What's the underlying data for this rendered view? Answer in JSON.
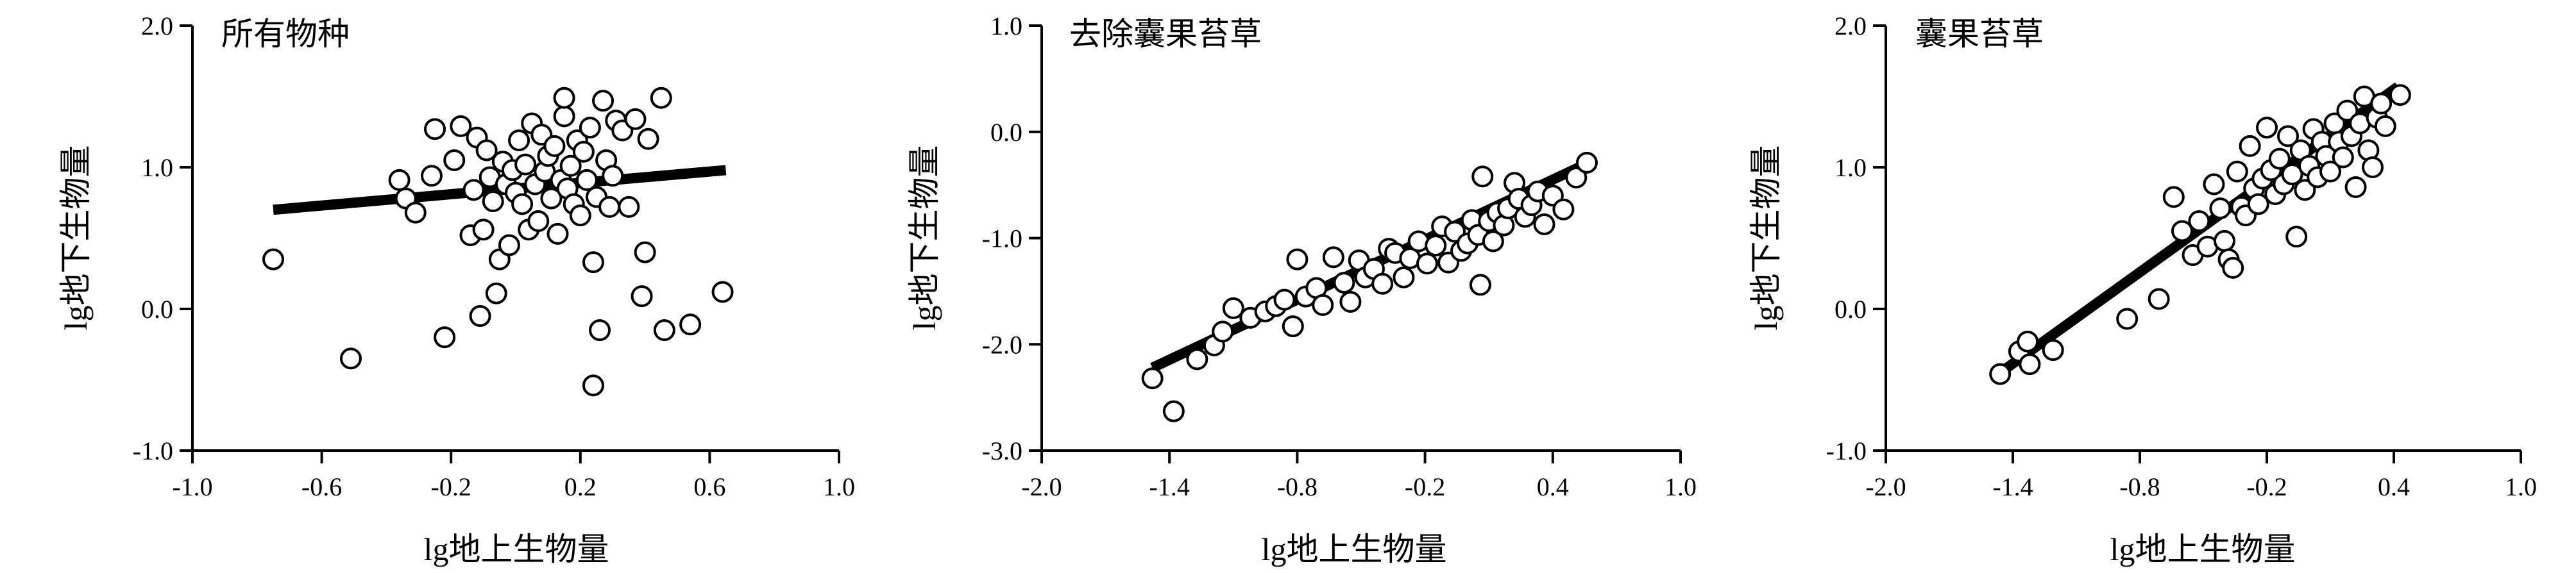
{
  "chart_data": [
    {
      "type": "scatter",
      "title": "所有物种",
      "xlabel": "lg地上生物量",
      "ylabel": "lg地下生物量",
      "xlim": [
        -1.0,
        1.0
      ],
      "ylim": [
        -1.0,
        2.0
      ],
      "xticks": [
        "-1.0",
        "-0.6",
        "-0.2",
        "0.2",
        "0.6",
        "1.0"
      ],
      "yticks": [
        "2.0",
        "1.0",
        "0.0",
        "-1.0"
      ],
      "grid": false,
      "fit_line": {
        "x": [
          -0.75,
          0.65
        ],
        "y": [
          0.7,
          0.98
        ]
      },
      "points": [
        [
          -0.75,
          0.35
        ],
        [
          -0.51,
          -0.35
        ],
        [
          -0.36,
          0.91
        ],
        [
          -0.34,
          0.78
        ],
        [
          -0.31,
          0.68
        ],
        [
          -0.26,
          0.94
        ],
        [
          -0.25,
          1.27
        ],
        [
          -0.22,
          -0.2
        ],
        [
          -0.19,
          1.05
        ],
        [
          -0.17,
          1.29
        ],
        [
          -0.14,
          0.52
        ],
        [
          -0.13,
          0.84
        ],
        [
          -0.12,
          1.21
        ],
        [
          -0.11,
          -0.05
        ],
        [
          -0.1,
          0.56
        ],
        [
          -0.09,
          1.12
        ],
        [
          -0.08,
          0.93
        ],
        [
          -0.07,
          0.76
        ],
        [
          -0.06,
          0.11
        ],
        [
          -0.05,
          0.35
        ],
        [
          -0.04,
          1.04
        ],
        [
          -0.03,
          0.88
        ],
        [
          -0.02,
          0.45
        ],
        [
          -0.01,
          0.98
        ],
        [
          0.0,
          0.82
        ],
        [
          0.01,
          1.19
        ],
        [
          0.02,
          0.74
        ],
        [
          0.03,
          1.02
        ],
        [
          0.04,
          0.56
        ],
        [
          0.05,
          1.31
        ],
        [
          0.06,
          0.88
        ],
        [
          0.07,
          0.62
        ],
        [
          0.08,
          1.23
        ],
        [
          0.09,
          0.97
        ],
        [
          0.1,
          1.08
        ],
        [
          0.11,
          0.78
        ],
        [
          0.12,
          1.15
        ],
        [
          0.13,
          0.53
        ],
        [
          0.14,
          0.91
        ],
        [
          0.15,
          1.36
        ],
        [
          0.15,
          1.49
        ],
        [
          0.16,
          0.85
        ],
        [
          0.17,
          1.01
        ],
        [
          0.18,
          0.74
        ],
        [
          0.19,
          1.19
        ],
        [
          0.2,
          0.66
        ],
        [
          0.21,
          1.11
        ],
        [
          0.22,
          0.91
        ],
        [
          0.23,
          1.28
        ],
        [
          0.24,
          0.33
        ],
        [
          0.24,
          -0.54
        ],
        [
          0.25,
          0.79
        ],
        [
          0.26,
          -0.15
        ],
        [
          0.27,
          1.47
        ],
        [
          0.28,
          1.05
        ],
        [
          0.29,
          0.72
        ],
        [
          0.3,
          0.94
        ],
        [
          0.31,
          1.33
        ],
        [
          0.33,
          1.26
        ],
        [
          0.35,
          0.72
        ],
        [
          0.37,
          1.34
        ],
        [
          0.39,
          0.09
        ],
        [
          0.4,
          0.4
        ],
        [
          0.41,
          1.2
        ],
        [
          0.45,
          1.49
        ],
        [
          0.46,
          -0.15
        ],
        [
          0.54,
          -0.11
        ],
        [
          0.64,
          0.12
        ]
      ]
    },
    {
      "type": "scatter",
      "title": "去除囊果苔草",
      "xlabel": "lg地上生物量",
      "ylabel": "lg地下生物量",
      "xlim": [
        -2.0,
        1.0
      ],
      "ylim": [
        -3.0,
        1.0
      ],
      "xticks": [
        "-2.0",
        "-1.4",
        "-0.8",
        "-0.2",
        "0.4",
        "1.0"
      ],
      "yticks": [
        "1.0",
        "0.0",
        "-1.0",
        "-2.0",
        "-3.0"
      ],
      "grid": false,
      "fit_line": {
        "x": [
          -1.48,
          0.58
        ],
        "y": [
          -2.22,
          -0.28
        ]
      },
      "points": [
        [
          -1.48,
          -2.32
        ],
        [
          -1.38,
          -2.63
        ],
        [
          -1.27,
          -2.14
        ],
        [
          -1.19,
          -2.01
        ],
        [
          -1.15,
          -1.88
        ],
        [
          -1.1,
          -1.66
        ],
        [
          -1.02,
          -1.75
        ],
        [
          -0.95,
          -1.69
        ],
        [
          -0.9,
          -1.64
        ],
        [
          -0.86,
          -1.58
        ],
        [
          -0.82,
          -1.83
        ],
        [
          -0.8,
          -1.2
        ],
        [
          -0.76,
          -1.55
        ],
        [
          -0.71,
          -1.47
        ],
        [
          -0.68,
          -1.63
        ],
        [
          -0.63,
          -1.18
        ],
        [
          -0.58,
          -1.42
        ],
        [
          -0.55,
          -1.6
        ],
        [
          -0.51,
          -1.21
        ],
        [
          -0.48,
          -1.37
        ],
        [
          -0.44,
          -1.29
        ],
        [
          -0.4,
          -1.43
        ],
        [
          -0.37,
          -1.1
        ],
        [
          -0.34,
          -1.14
        ],
        [
          -0.3,
          -1.37
        ],
        [
          -0.27,
          -1.19
        ],
        [
          -0.23,
          -1.03
        ],
        [
          -0.19,
          -1.24
        ],
        [
          -0.15,
          -1.07
        ],
        [
          -0.12,
          -0.89
        ],
        [
          -0.09,
          -1.23
        ],
        [
          -0.06,
          -0.94
        ],
        [
          -0.03,
          -1.12
        ],
        [
          0.0,
          -1.05
        ],
        [
          0.02,
          -0.83
        ],
        [
          0.05,
          -0.97
        ],
        [
          0.06,
          -1.44
        ],
        [
          0.07,
          -0.42
        ],
        [
          0.1,
          -0.84
        ],
        [
          0.12,
          -1.03
        ],
        [
          0.14,
          -0.76
        ],
        [
          0.17,
          -0.88
        ],
        [
          0.19,
          -0.72
        ],
        [
          0.22,
          -0.48
        ],
        [
          0.24,
          -0.63
        ],
        [
          0.27,
          -0.8
        ],
        [
          0.3,
          -0.69
        ],
        [
          0.33,
          -0.56
        ],
        [
          0.36,
          -0.87
        ],
        [
          0.4,
          -0.6
        ],
        [
          0.45,
          -0.73
        ],
        [
          0.51,
          -0.43
        ],
        [
          0.56,
          -0.29
        ]
      ]
    },
    {
      "type": "scatter",
      "title": "囊果苔草",
      "xlabel": "lg地上生物量",
      "ylabel": "lg地下生物量",
      "xlim": [
        -2.0,
        1.0
      ],
      "ylim": [
        -1.0,
        2.0
      ],
      "xticks": [
        "-2.0",
        "-1.4",
        "-0.8",
        "-0.2",
        "0.4",
        "1.0"
      ],
      "yticks": [
        "2.0",
        "1.0",
        "0.0",
        "-1.0"
      ],
      "grid": false,
      "fit_line": {
        "x": [
          -1.46,
          0.42
        ],
        "y": [
          -0.45,
          1.57
        ]
      },
      "points": [
        [
          -1.46,
          -0.46
        ],
        [
          -1.37,
          -0.3
        ],
        [
          -1.33,
          -0.23
        ],
        [
          -1.32,
          -0.39
        ],
        [
          -1.21,
          -0.29
        ],
        [
          -0.86,
          -0.07
        ],
        [
          -0.71,
          0.07
        ],
        [
          -0.64,
          0.79
        ],
        [
          -0.6,
          0.55
        ],
        [
          -0.55,
          0.38
        ],
        [
          -0.52,
          0.62
        ],
        [
          -0.48,
          0.44
        ],
        [
          -0.45,
          0.88
        ],
        [
          -0.42,
          0.71
        ],
        [
          -0.4,
          0.48
        ],
        [
          -0.38,
          0.35
        ],
        [
          -0.36,
          0.29
        ],
        [
          -0.34,
          0.97
        ],
        [
          -0.32,
          0.72
        ],
        [
          -0.3,
          0.66
        ],
        [
          -0.28,
          1.15
        ],
        [
          -0.26,
          0.85
        ],
        [
          -0.24,
          0.74
        ],
        [
          -0.22,
          0.92
        ],
        [
          -0.2,
          1.28
        ],
        [
          -0.18,
          0.98
        ],
        [
          -0.16,
          0.81
        ],
        [
          -0.14,
          1.06
        ],
        [
          -0.12,
          0.88
        ],
        [
          -0.1,
          1.22
        ],
        [
          -0.08,
          0.95
        ],
        [
          -0.06,
          0.51
        ],
        [
          -0.04,
          1.12
        ],
        [
          -0.02,
          0.84
        ],
        [
          0.0,
          1.01
        ],
        [
          0.02,
          1.27
        ],
        [
          0.04,
          0.93
        ],
        [
          0.06,
          1.18
        ],
        [
          0.08,
          1.08
        ],
        [
          0.1,
          0.97
        ],
        [
          0.12,
          1.31
        ],
        [
          0.14,
          1.18
        ],
        [
          0.16,
          1.07
        ],
        [
          0.18,
          1.4
        ],
        [
          0.2,
          1.22
        ],
        [
          0.22,
          0.86
        ],
        [
          0.24,
          1.31
        ],
        [
          0.26,
          1.5
        ],
        [
          0.28,
          1.12
        ],
        [
          0.3,
          1.0
        ],
        [
          0.32,
          1.35
        ],
        [
          0.34,
          1.45
        ],
        [
          0.36,
          1.29
        ],
        [
          0.43,
          1.51
        ]
      ]
    }
  ]
}
